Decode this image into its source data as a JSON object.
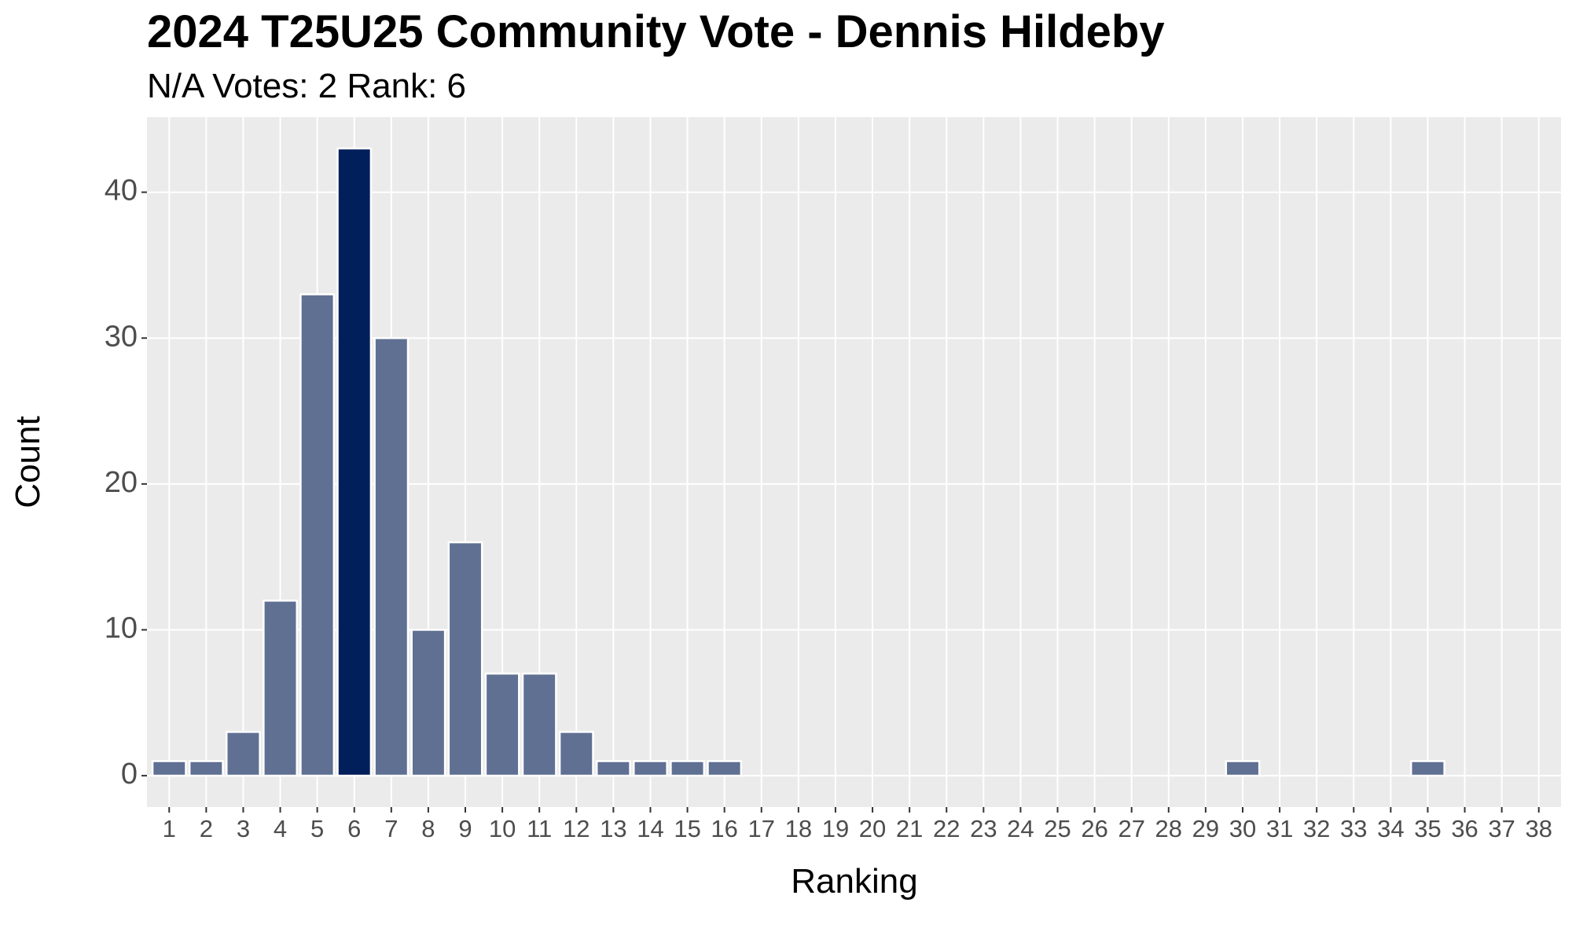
{
  "chart_data": {
    "type": "bar",
    "title": "2024 T25U25 Community Vote - Dennis Hildeby",
    "subtitle": "N/A Votes: 2  Rank: 6",
    "x_label": "Ranking",
    "y_label": "Count",
    "categories": [
      "1",
      "2",
      "3",
      "4",
      "5",
      "6",
      "7",
      "8",
      "9",
      "10",
      "11",
      "12",
      "13",
      "14",
      "15",
      "16",
      "17",
      "18",
      "19",
      "20",
      "21",
      "22",
      "23",
      "24",
      "25",
      "26",
      "27",
      "28",
      "29",
      "30",
      "31",
      "32",
      "33",
      "34",
      "35",
      "36",
      "37",
      "38"
    ],
    "values": [
      1,
      1,
      3,
      12,
      33,
      43,
      30,
      10,
      16,
      7,
      7,
      3,
      1,
      1,
      1,
      1,
      0,
      0,
      0,
      0,
      0,
      0,
      0,
      0,
      0,
      0,
      0,
      0,
      0,
      1,
      0,
      0,
      0,
      0,
      1,
      0,
      0,
      0
    ],
    "colors": [
      "#5f7093",
      "#5f7093",
      "#5f7093",
      "#5f7093",
      "#5f7093",
      "#001f5b",
      "#5f7093",
      "#5f7093",
      "#5f7093",
      "#5f7093",
      "#5f7093",
      "#5f7093",
      "#5f7093",
      "#5f7093",
      "#5f7093",
      "#5f7093",
      "#5f7093",
      "#5f7093",
      "#5f7093",
      "#5f7093",
      "#5f7093",
      "#5f7093",
      "#5f7093",
      "#5f7093",
      "#5f7093",
      "#5f7093",
      "#5f7093",
      "#5f7093",
      "#5f7093",
      "#5f7093",
      "#5f7093",
      "#5f7093",
      "#5f7093",
      "#5f7093",
      "#5f7093",
      "#5f7093",
      "#5f7093",
      "#5f7093"
    ],
    "ylim": [
      -2.15,
      45.15
    ],
    "yticks": [
      0,
      10,
      20,
      30,
      40
    ],
    "grid": true
  }
}
